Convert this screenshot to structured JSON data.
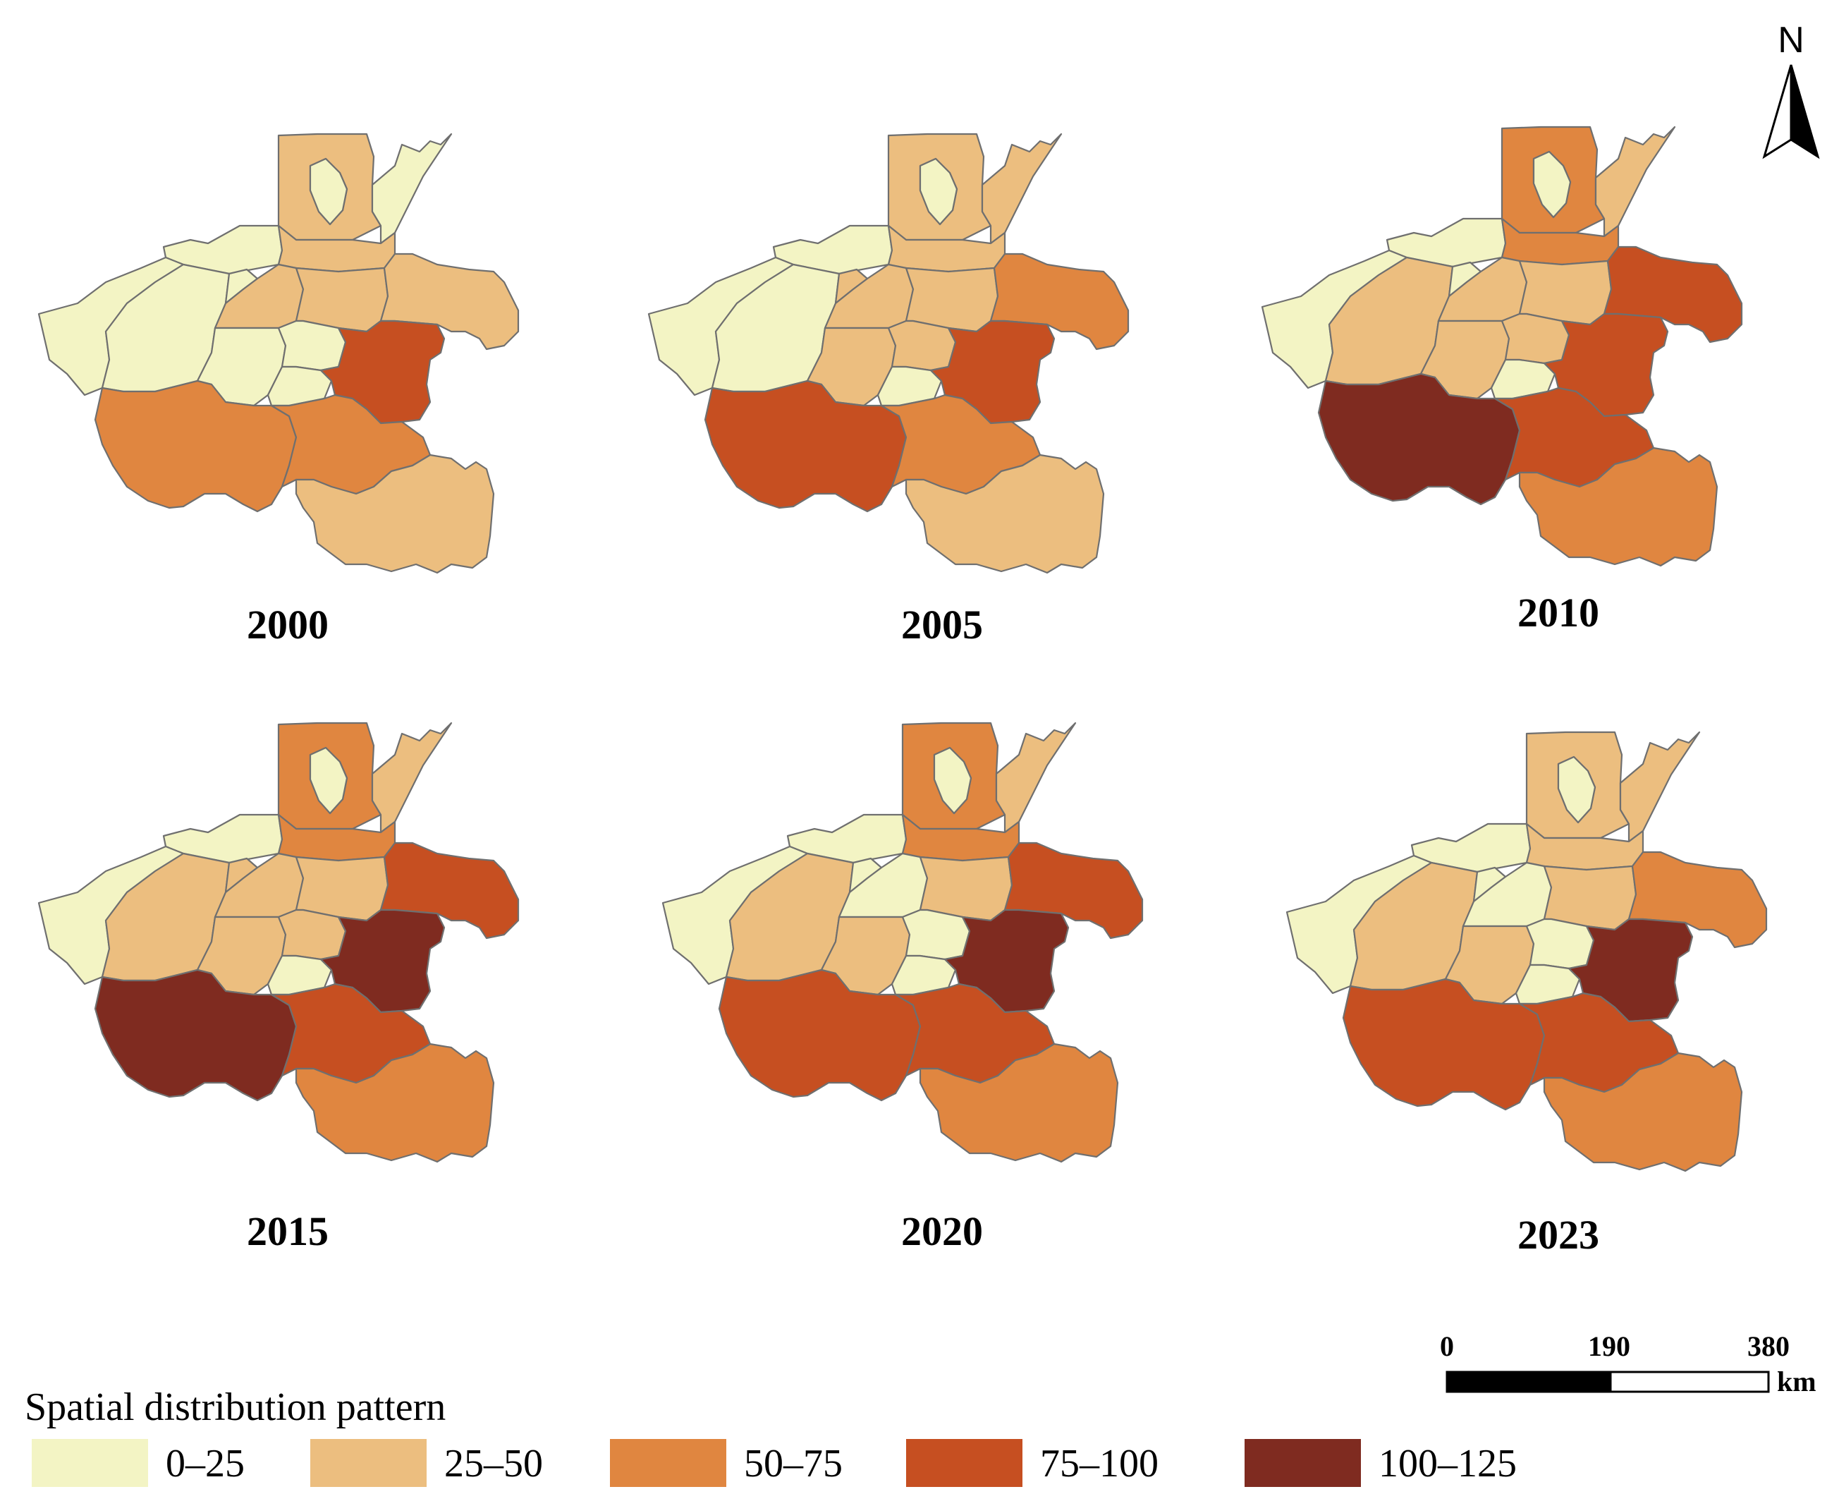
{
  "colors": {
    "c0": "#f3f4c4",
    "c1": "#ecbe7f",
    "c2": "#e08640",
    "c3": "#c64f21",
    "c4": "#7f2b20"
  },
  "legend": {
    "title": "Spatial distribution pattern",
    "classes": [
      {
        "label": "0–25",
        "color": "#f3f4c4"
      },
      {
        "label": "25–50",
        "color": "#ecbe7f"
      },
      {
        "label": "50–75",
        "color": "#e08640"
      },
      {
        "label": "75–100",
        "color": "#c64f21"
      },
      {
        "label": "100–125",
        "color": "#7f2b20"
      }
    ]
  },
  "north_arrow": {
    "label": "N"
  },
  "scale_bar": {
    "ticks": [
      "0",
      "190",
      "380"
    ],
    "unit": "km"
  },
  "maps": [
    {
      "year": "2000",
      "classes": {
        "anyang": 1,
        "hebi": 0,
        "puyang": 0,
        "jiaozuo": 0,
        "xinxiang": 1,
        "sanmenxia": 0,
        "luoyang": 0,
        "jiyuan": 0,
        "zhengzhou": 1,
        "kaifeng": 1,
        "shangqiu": 1,
        "pingdingshan": 0,
        "xuchang": 0,
        "luohe": 0,
        "zhoukou": 3,
        "nanyang": 2,
        "zhumadian": 2,
        "xinyang": 1
      }
    },
    {
      "year": "2005",
      "classes": {
        "anyang": 1,
        "hebi": 0,
        "puyang": 1,
        "jiaozuo": 0,
        "xinxiang": 1,
        "sanmenxia": 0,
        "luoyang": 0,
        "jiyuan": 1,
        "zhengzhou": 1,
        "kaifeng": 1,
        "shangqiu": 2,
        "pingdingshan": 1,
        "xuchang": 1,
        "luohe": 0,
        "zhoukou": 3,
        "nanyang": 3,
        "zhumadian": 2,
        "xinyang": 1
      }
    },
    {
      "year": "2010",
      "classes": {
        "anyang": 2,
        "hebi": 0,
        "puyang": 1,
        "jiaozuo": 0,
        "xinxiang": 2,
        "sanmenxia": 0,
        "luoyang": 1,
        "jiyuan": 0,
        "zhengzhou": 1,
        "kaifeng": 1,
        "shangqiu": 3,
        "pingdingshan": 1,
        "xuchang": 1,
        "luohe": 0,
        "zhoukou": 3,
        "nanyang": 4,
        "zhumadian": 3,
        "xinyang": 2
      }
    },
    {
      "year": "2015",
      "classes": {
        "anyang": 2,
        "hebi": 0,
        "puyang": 1,
        "jiaozuo": 0,
        "xinxiang": 2,
        "sanmenxia": 0,
        "luoyang": 1,
        "jiyuan": 1,
        "zhengzhou": 1,
        "kaifeng": 1,
        "shangqiu": 3,
        "pingdingshan": 1,
        "xuchang": 1,
        "luohe": 0,
        "zhoukou": 4,
        "nanyang": 4,
        "zhumadian": 3,
        "xinyang": 2
      }
    },
    {
      "year": "2020",
      "classes": {
        "anyang": 2,
        "hebi": 0,
        "puyang": 1,
        "jiaozuo": 0,
        "xinxiang": 2,
        "sanmenxia": 0,
        "luoyang": 1,
        "jiyuan": 0,
        "zhengzhou": 0,
        "kaifeng": 1,
        "shangqiu": 3,
        "pingdingshan": 1,
        "xuchang": 0,
        "luohe": 0,
        "zhoukou": 4,
        "nanyang": 3,
        "zhumadian": 3,
        "xinyang": 2
      }
    },
    {
      "year": "2023",
      "classes": {
        "anyang": 1,
        "hebi": 0,
        "puyang": 1,
        "jiaozuo": 0,
        "xinxiang": 1,
        "sanmenxia": 0,
        "luoyang": 1,
        "jiyuan": 0,
        "zhengzhou": 0,
        "kaifeng": 1,
        "shangqiu": 2,
        "pingdingshan": 1,
        "xuchang": 0,
        "luohe": 0,
        "zhoukou": 4,
        "nanyang": 3,
        "zhumadian": 3,
        "xinyang": 2
      }
    }
  ]
}
